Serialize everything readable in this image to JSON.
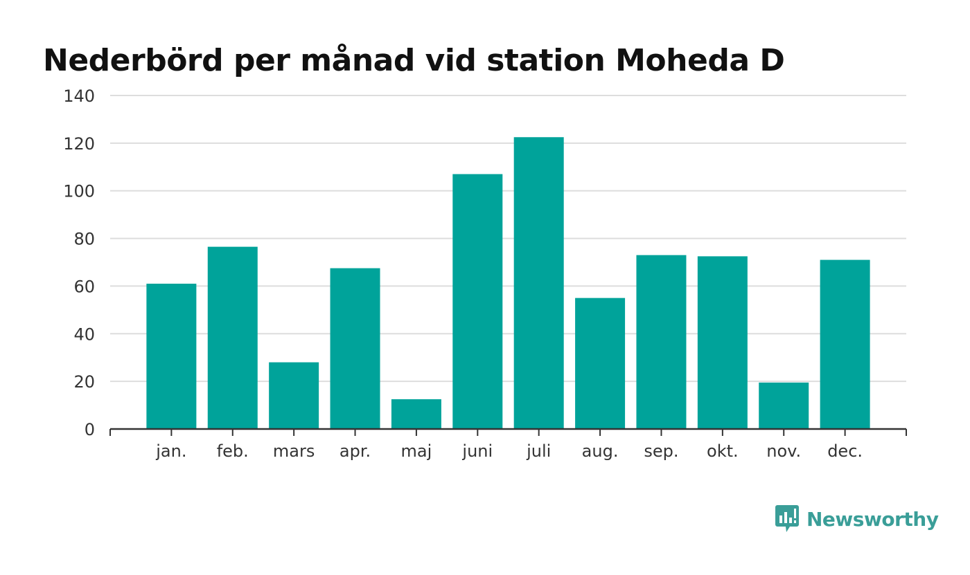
{
  "chart_data": {
    "type": "bar",
    "title": "Nederbörd per månad vid station Moheda D",
    "xlabel": "",
    "ylabel": "",
    "categories": [
      "jan.",
      "feb.",
      "mars",
      "apr.",
      "maj",
      "juni",
      "juli",
      "aug.",
      "sep.",
      "okt.",
      "nov.",
      "dec."
    ],
    "values": [
      61,
      76.5,
      28,
      67.5,
      12.5,
      107,
      122.5,
      55,
      73,
      72.5,
      19.5,
      71
    ],
    "ylim": [
      0,
      140
    ],
    "yticks": [
      0,
      20,
      40,
      60,
      80,
      100,
      120,
      140
    ],
    "grid": true,
    "bar_color": "#00a39a"
  },
  "brand": {
    "name": "Newsworthy",
    "color": "#3a9e98",
    "icon": "newsworthy-logo-icon"
  }
}
